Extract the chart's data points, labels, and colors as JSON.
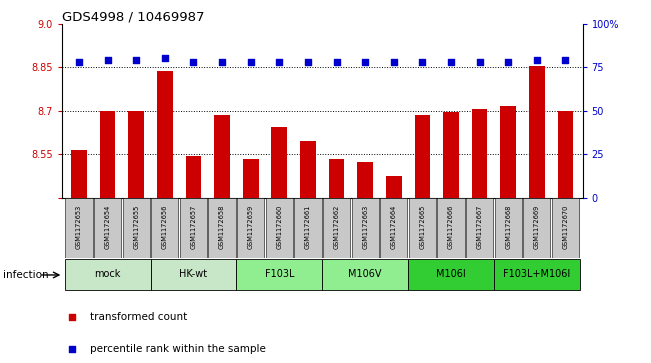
{
  "title": "GDS4998 / 10469987",
  "samples": [
    "GSM1172653",
    "GSM1172654",
    "GSM1172655",
    "GSM1172656",
    "GSM1172657",
    "GSM1172658",
    "GSM1172659",
    "GSM1172660",
    "GSM1172661",
    "GSM1172662",
    "GSM1172663",
    "GSM1172664",
    "GSM1172665",
    "GSM1172666",
    "GSM1172667",
    "GSM1172668",
    "GSM1172669",
    "GSM1172670"
  ],
  "bar_values": [
    8.565,
    8.7,
    8.7,
    8.838,
    8.545,
    8.685,
    8.535,
    8.645,
    8.595,
    8.535,
    8.525,
    8.475,
    8.685,
    8.695,
    8.705,
    8.715,
    8.855,
    8.7
  ],
  "percentile_values": [
    78,
    79,
    79,
    80,
    78,
    78,
    78,
    78,
    78,
    78,
    78,
    78,
    78,
    78,
    78,
    78,
    79,
    79
  ],
  "groups_data": [
    {
      "label": "mock",
      "members": [
        0,
        1,
        2
      ],
      "color": "#c8e6c8"
    },
    {
      "label": "HK-wt",
      "members": [
        3,
        4,
        5
      ],
      "color": "#c8e6c8"
    },
    {
      "label": "F103L",
      "members": [
        6,
        7,
        8
      ],
      "color": "#90ee90"
    },
    {
      "label": "M106V",
      "members": [
        9,
        10,
        11
      ],
      "color": "#90ee90"
    },
    {
      "label": "M106I",
      "members": [
        12,
        13,
        14
      ],
      "color": "#32cd32"
    },
    {
      "label": "F103L+M106I",
      "members": [
        15,
        16,
        17
      ],
      "color": "#32cd32"
    }
  ],
  "ylim_left": [
    8.4,
    9.0
  ],
  "ylim_right": [
    0,
    100
  ],
  "yticks_left": [
    8.4,
    8.55,
    8.7,
    8.85,
    9.0
  ],
  "yticks_right": [
    0,
    25,
    50,
    75,
    100
  ],
  "bar_color": "#cc0000",
  "dot_color": "#0000cc",
  "infection_label": "infection",
  "legend_bar_label": "transformed count",
  "legend_dot_label": "percentile rank within the sample",
  "sample_box_color": "#c8c8c8"
}
